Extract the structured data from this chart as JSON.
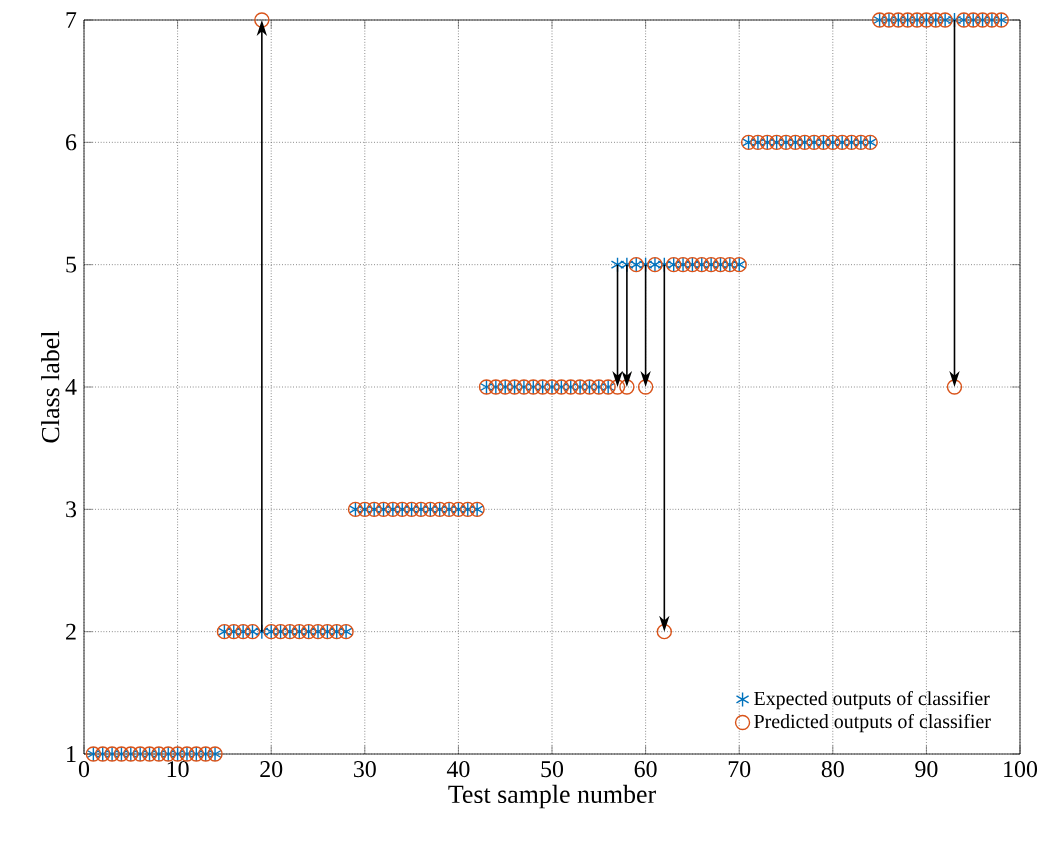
{
  "chart_data": {
    "type": "scatter",
    "xlabel": "Test sample number",
    "ylabel": "Class label",
    "x": [
      1,
      2,
      3,
      4,
      5,
      6,
      7,
      8,
      9,
      10,
      11,
      12,
      13,
      14,
      15,
      16,
      17,
      18,
      19,
      20,
      21,
      22,
      23,
      24,
      25,
      26,
      27,
      28,
      29,
      30,
      31,
      32,
      33,
      34,
      35,
      36,
      37,
      38,
      39,
      40,
      41,
      42,
      43,
      44,
      45,
      46,
      47,
      48,
      49,
      50,
      51,
      52,
      53,
      54,
      55,
      56,
      57,
      58,
      59,
      60,
      61,
      62,
      63,
      64,
      65,
      66,
      67,
      68,
      69,
      70,
      71,
      72,
      73,
      74,
      75,
      76,
      77,
      78,
      79,
      80,
      81,
      82,
      83,
      84,
      85,
      86,
      87,
      88,
      89,
      90,
      91,
      92,
      93,
      94,
      95,
      96,
      97,
      98
    ],
    "series": [
      {
        "name": "Expected outputs of classifier",
        "color": "#0072bd",
        "marker": "cross",
        "values": [
          1,
          1,
          1,
          1,
          1,
          1,
          1,
          1,
          1,
          1,
          1,
          1,
          1,
          1,
          2,
          2,
          2,
          2,
          2,
          2,
          2,
          2,
          2,
          2,
          2,
          2,
          2,
          2,
          3,
          3,
          3,
          3,
          3,
          3,
          3,
          3,
          3,
          3,
          3,
          3,
          3,
          3,
          4,
          4,
          4,
          4,
          4,
          4,
          4,
          4,
          4,
          4,
          4,
          4,
          4,
          4,
          5,
          5,
          5,
          5,
          5,
          5,
          5,
          5,
          5,
          5,
          5,
          5,
          5,
          5,
          6,
          6,
          6,
          6,
          6,
          6,
          6,
          6,
          6,
          6,
          6,
          6,
          6,
          6,
          7,
          7,
          7,
          7,
          7,
          7,
          7,
          7,
          7,
          7,
          7,
          7,
          7,
          7
        ]
      },
      {
        "name": "Predicted outputs of classifier",
        "color": "#d95319",
        "marker": "circle",
        "values": [
          1,
          1,
          1,
          1,
          1,
          1,
          1,
          1,
          1,
          1,
          1,
          1,
          1,
          1,
          2,
          2,
          2,
          2,
          7,
          2,
          2,
          2,
          2,
          2,
          2,
          2,
          2,
          2,
          3,
          3,
          3,
          3,
          3,
          3,
          3,
          3,
          3,
          3,
          3,
          3,
          3,
          3,
          4,
          4,
          4,
          4,
          4,
          4,
          4,
          4,
          4,
          4,
          4,
          4,
          4,
          4,
          4,
          4,
          5,
          4,
          5,
          2,
          5,
          5,
          5,
          5,
          5,
          5,
          5,
          5,
          6,
          6,
          6,
          6,
          6,
          6,
          6,
          6,
          6,
          6,
          6,
          6,
          6,
          6,
          7,
          7,
          7,
          7,
          7,
          7,
          7,
          7,
          4,
          7,
          7,
          7,
          7,
          7
        ]
      }
    ],
    "xlim": [
      0,
      100
    ],
    "ylim": [
      1,
      7
    ],
    "xticks": [
      0,
      10,
      20,
      30,
      40,
      50,
      60,
      70,
      80,
      90,
      100
    ],
    "yticks": [
      1,
      2,
      3,
      4,
      5,
      6,
      7
    ],
    "grid": true,
    "legend": "bottom right"
  }
}
